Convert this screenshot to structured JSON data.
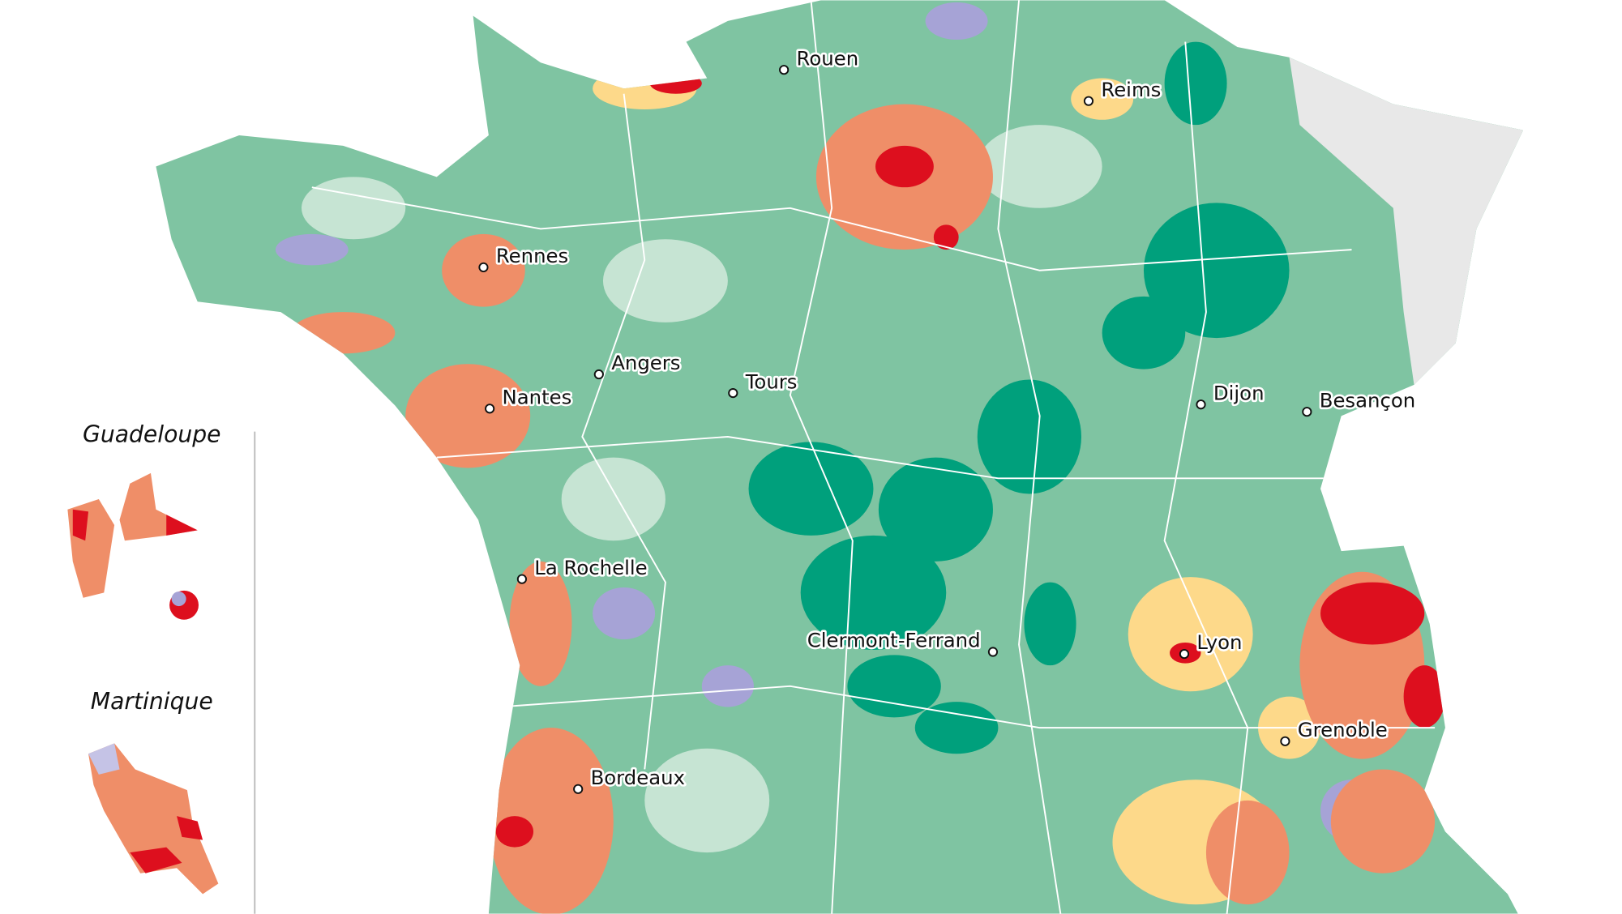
{
  "map": {
    "cities": [
      {
        "name": "Rouen"
      },
      {
        "name": "Reims"
      },
      {
        "name": "Rennes"
      },
      {
        "name": "Angers"
      },
      {
        "name": "Tours"
      },
      {
        "name": "Nantes"
      },
      {
        "name": "Dijon"
      },
      {
        "name": "Besançon"
      },
      {
        "name": "La Rochelle"
      },
      {
        "name": "Clermont-Ferrand"
      },
      {
        "name": "Lyon"
      },
      {
        "name": "Grenoble"
      },
      {
        "name": "Bordeaux"
      }
    ],
    "insets": [
      {
        "title": "Guadeloupe"
      },
      {
        "title": "Martinique"
      }
    ]
  }
}
